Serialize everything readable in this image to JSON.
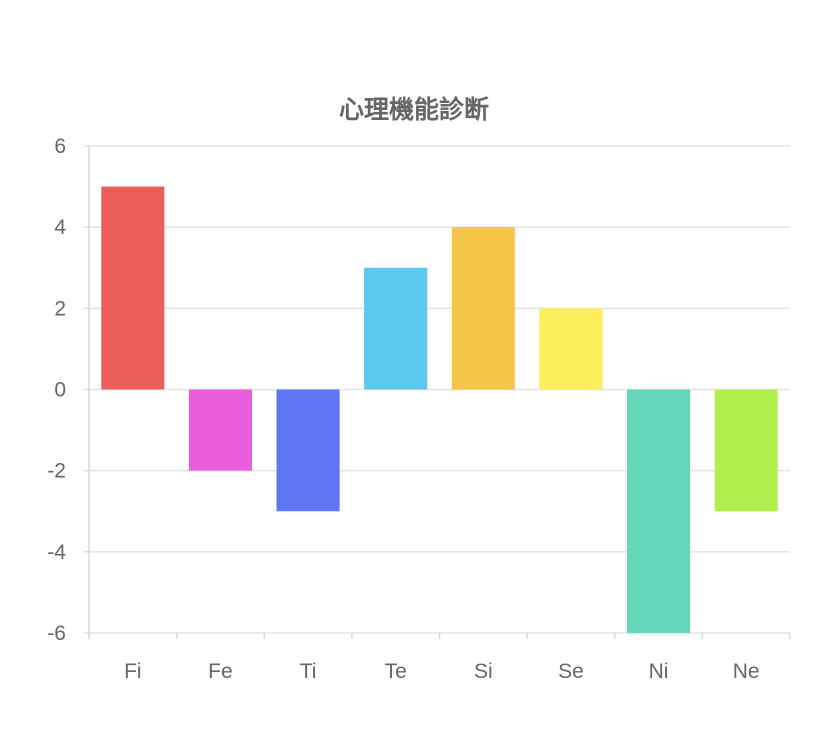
{
  "chart_data": {
    "type": "bar",
    "title": "心理機能診断",
    "xlabel": "",
    "ylabel": "",
    "categories": [
      "Fi",
      "Fe",
      "Ti",
      "Te",
      "Si",
      "Se",
      "Ni",
      "Ne"
    ],
    "values": [
      5,
      -2,
      -3,
      3,
      4,
      2,
      -6,
      -3
    ],
    "colors": [
      "#ec5f58",
      "#ea5edb",
      "#5f76f4",
      "#5bc8ee",
      "#f5c54a",
      "#fbee5a",
      "#66d6b8",
      "#b0ef4e"
    ],
    "ylim": [
      -6,
      6
    ],
    "yticks": [
      6,
      4,
      2,
      0,
      -2,
      -4,
      -6
    ],
    "grid": true,
    "legend": "none"
  }
}
